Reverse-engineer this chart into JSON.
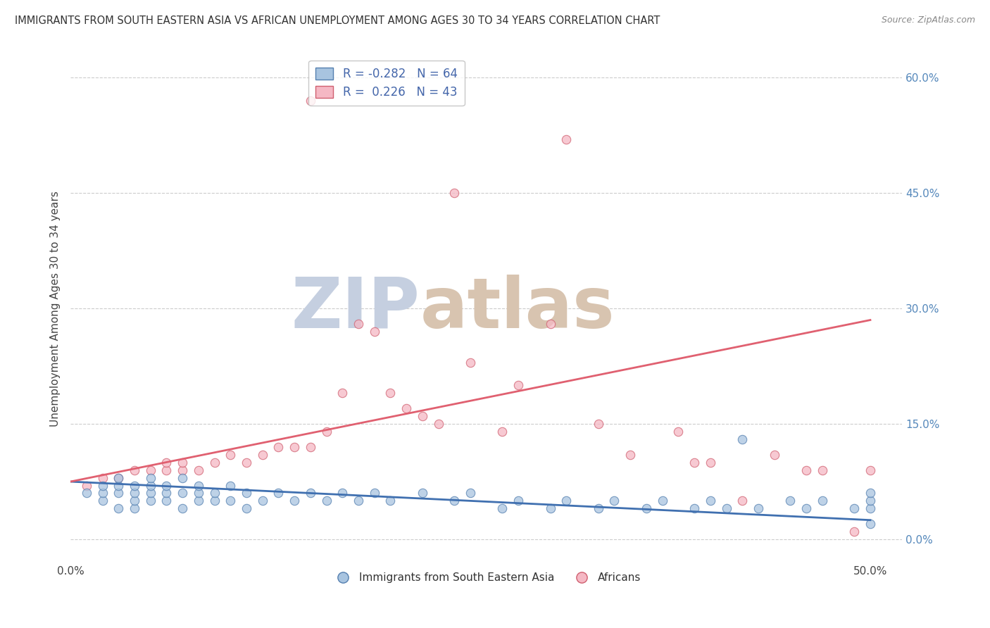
{
  "title": "IMMIGRANTS FROM SOUTH EASTERN ASIA VS AFRICAN UNEMPLOYMENT AMONG AGES 30 TO 34 YEARS CORRELATION CHART",
  "source": "Source: ZipAtlas.com",
  "ylabel": "Unemployment Among Ages 30 to 34 years",
  "xlim": [
    0.0,
    0.52
  ],
  "ylim": [
    -0.03,
    0.63
  ],
  "xticks": [
    0.0,
    0.1,
    0.2,
    0.3,
    0.4,
    0.5
  ],
  "xtick_labels": [
    "0.0%",
    "",
    "",
    "",
    "",
    "50.0%"
  ],
  "ytick_positions_right": [
    0.0,
    0.15,
    0.3,
    0.45,
    0.6
  ],
  "ytick_labels_right": [
    "0.0%",
    "15.0%",
    "30.0%",
    "45.0%",
    "60.0%"
  ],
  "legend1_label": "Immigrants from South Eastern Asia",
  "legend2_label": "Africans",
  "R1": -0.282,
  "N1": 64,
  "R2": 0.226,
  "N2": 43,
  "color_blue": "#a8c4e0",
  "color_pink": "#f5b8c4",
  "edge_color_blue": "#5580b0",
  "edge_color_pink": "#d06070",
  "line_color_blue": "#4070b0",
  "line_color_pink": "#e06070",
  "grid_color": "#cccccc",
  "background_color": "#ffffff",
  "watermark_color_zip": "#c5cfe0",
  "watermark_color_atlas": "#d8c4b0",
  "blue_x": [
    0.01,
    0.02,
    0.02,
    0.02,
    0.03,
    0.03,
    0.03,
    0.03,
    0.04,
    0.04,
    0.04,
    0.04,
    0.05,
    0.05,
    0.05,
    0.05,
    0.06,
    0.06,
    0.06,
    0.07,
    0.07,
    0.07,
    0.08,
    0.08,
    0.08,
    0.09,
    0.09,
    0.1,
    0.1,
    0.11,
    0.11,
    0.12,
    0.13,
    0.14,
    0.15,
    0.16,
    0.17,
    0.18,
    0.19,
    0.2,
    0.22,
    0.24,
    0.25,
    0.27,
    0.28,
    0.3,
    0.31,
    0.33,
    0.34,
    0.36,
    0.37,
    0.39,
    0.4,
    0.41,
    0.42,
    0.43,
    0.45,
    0.46,
    0.47,
    0.49,
    0.5,
    0.5,
    0.5,
    0.5
  ],
  "blue_y": [
    0.06,
    0.05,
    0.06,
    0.07,
    0.04,
    0.06,
    0.07,
    0.08,
    0.04,
    0.05,
    0.06,
    0.07,
    0.05,
    0.06,
    0.07,
    0.08,
    0.05,
    0.06,
    0.07,
    0.04,
    0.06,
    0.08,
    0.05,
    0.06,
    0.07,
    0.05,
    0.06,
    0.05,
    0.07,
    0.04,
    0.06,
    0.05,
    0.06,
    0.05,
    0.06,
    0.05,
    0.06,
    0.05,
    0.06,
    0.05,
    0.06,
    0.05,
    0.06,
    0.04,
    0.05,
    0.04,
    0.05,
    0.04,
    0.05,
    0.04,
    0.05,
    0.04,
    0.05,
    0.04,
    0.13,
    0.04,
    0.05,
    0.04,
    0.05,
    0.04,
    0.02,
    0.04,
    0.05,
    0.06
  ],
  "pink_x": [
    0.01,
    0.02,
    0.03,
    0.04,
    0.05,
    0.06,
    0.06,
    0.07,
    0.07,
    0.08,
    0.09,
    0.1,
    0.11,
    0.12,
    0.13,
    0.14,
    0.15,
    0.15,
    0.16,
    0.17,
    0.18,
    0.19,
    0.2,
    0.21,
    0.22,
    0.23,
    0.24,
    0.25,
    0.27,
    0.28,
    0.3,
    0.31,
    0.33,
    0.35,
    0.38,
    0.39,
    0.4,
    0.42,
    0.44,
    0.46,
    0.47,
    0.49,
    0.5
  ],
  "pink_y": [
    0.07,
    0.08,
    0.08,
    0.09,
    0.09,
    0.09,
    0.1,
    0.09,
    0.1,
    0.09,
    0.1,
    0.11,
    0.1,
    0.11,
    0.12,
    0.12,
    0.12,
    0.57,
    0.14,
    0.19,
    0.28,
    0.27,
    0.19,
    0.17,
    0.16,
    0.15,
    0.45,
    0.23,
    0.14,
    0.2,
    0.28,
    0.52,
    0.15,
    0.11,
    0.14,
    0.1,
    0.1,
    0.05,
    0.11,
    0.09,
    0.09,
    0.01,
    0.09
  ],
  "blue_trend_x": [
    0.0,
    0.5
  ],
  "blue_trend_y": [
    0.075,
    0.025
  ],
  "pink_trend_x": [
    0.0,
    0.5
  ],
  "pink_trend_y": [
    0.075,
    0.285
  ]
}
